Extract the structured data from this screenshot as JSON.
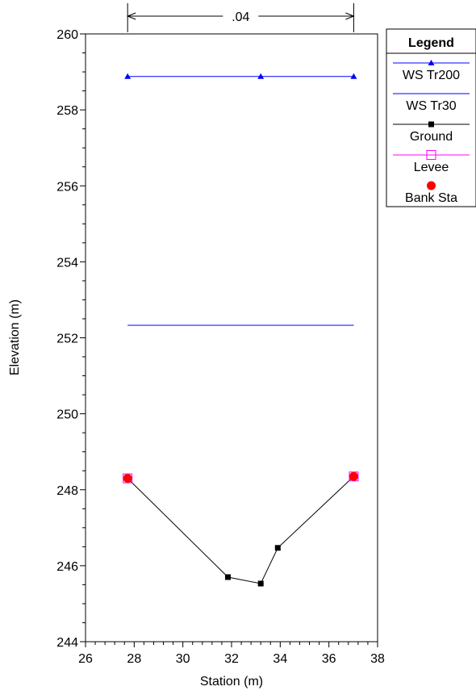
{
  "chart_data": {
    "type": "line",
    "xlabel": "Station (m)",
    "ylabel": "Elevation (m)",
    "xlim": [
      26,
      38
    ],
    "ylim": [
      244,
      260
    ],
    "x_ticks": [
      26,
      28,
      30,
      32,
      34,
      36,
      38
    ],
    "y_ticks": [
      244,
      246,
      248,
      250,
      252,
      254,
      256,
      258,
      260
    ],
    "grid": false,
    "legend_placement": "top-right",
    "legend_title": "Legend",
    "manning": {
      "label": ".04",
      "x_start": 27.73,
      "x_end": 37.02
    },
    "series": [
      {
        "name": "WS Tr200",
        "color": "#0000ff",
        "marker": "triangle",
        "x": [
          27.73,
          33.2,
          37.02
        ],
        "y": [
          258.88,
          258.88,
          258.88
        ]
      },
      {
        "name": "WS Tr30",
        "color": "#0000ff",
        "marker": "none",
        "x": [
          27.73,
          37.02
        ],
        "y": [
          252.33,
          252.33
        ]
      },
      {
        "name": "Ground",
        "color": "#000000",
        "marker": "square",
        "x": [
          27.73,
          31.85,
          33.2,
          33.9,
          37.02
        ],
        "y": [
          248.3,
          245.7,
          245.53,
          246.47,
          248.35
        ]
      },
      {
        "name": "Levee",
        "color": "#ff00ff",
        "marker": "open-square",
        "x": [
          27.73,
          37.02
        ],
        "y": [
          248.3,
          248.35
        ]
      },
      {
        "name": "Bank Sta",
        "color": "#ff0000",
        "marker": "circle",
        "x": [
          27.73,
          37.02
        ],
        "y": [
          248.3,
          248.35
        ]
      }
    ]
  }
}
